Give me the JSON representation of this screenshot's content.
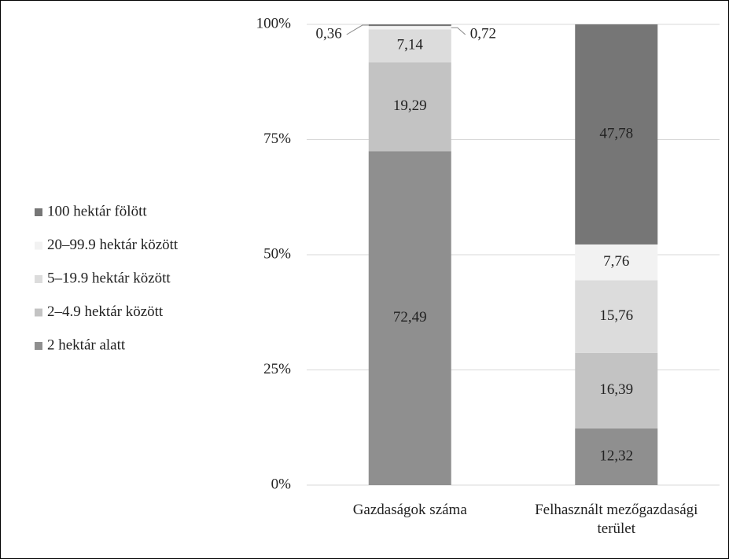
{
  "chart_data": {
    "type": "stacked_bar",
    "categories": [
      "Gazdaságok száma",
      "Felhasznált mezőgazdasági terület"
    ],
    "series": [
      {
        "name": "2 hektár alatt",
        "color": "#8f8f8f",
        "values": [
          72.49,
          12.32
        ],
        "value_labels": [
          "72,49",
          "12,32"
        ]
      },
      {
        "name": "2–4.9 hektár között",
        "color": "#c3c3c3",
        "values": [
          19.29,
          16.39
        ],
        "value_labels": [
          "19,29",
          "16,39"
        ]
      },
      {
        "name": "5–19.9 hektár között",
        "color": "#dcdcdc",
        "values": [
          7.14,
          15.76
        ],
        "value_labels": [
          "7,14",
          "15,76"
        ]
      },
      {
        "name": "20–99.9 hektár között",
        "color": "#f2f2f2",
        "values": [
          0.72,
          7.76
        ],
        "value_labels": [
          "0,72",
          "7,76"
        ]
      },
      {
        "name": "100 hektár fölött",
        "color": "#767676",
        "values": [
          0.36,
          47.78
        ],
        "value_labels": [
          "0,36",
          "47,78"
        ]
      }
    ],
    "ylim": [
      0,
      100
    ],
    "yticks": [
      {
        "value": 0,
        "label": "0%"
      },
      {
        "value": 25,
        "label": "25%"
      },
      {
        "value": 50,
        "label": "50%"
      },
      {
        "value": 75,
        "label": "75%"
      },
      {
        "value": 100,
        "label": "100%"
      }
    ],
    "grid": true,
    "legend": "left"
  }
}
